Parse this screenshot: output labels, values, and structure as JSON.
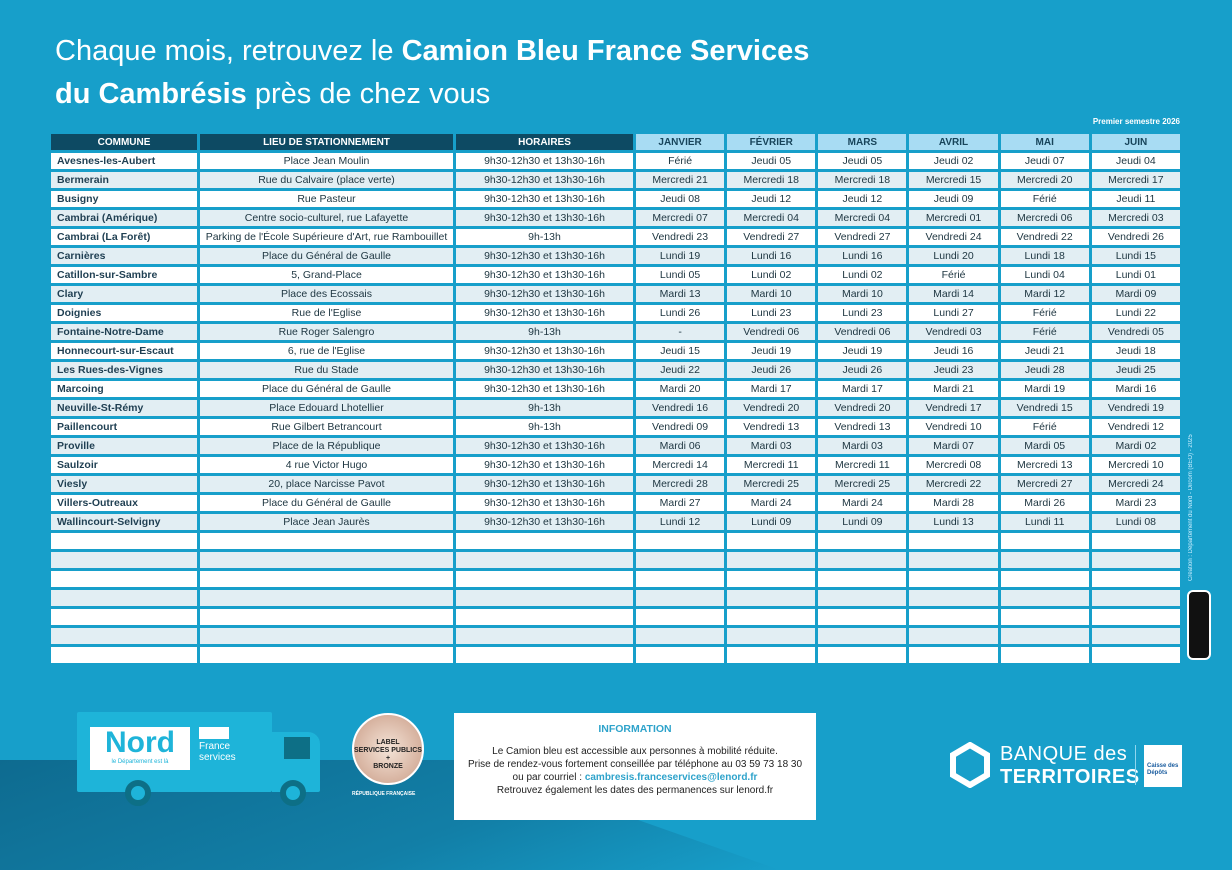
{
  "title": {
    "line1_regular": "Chaque mois, retrouvez le ",
    "line1_bold": "Camion Bleu France Services",
    "line2_bold": "du Cambrésis",
    "line2_regular": " près de chez vous"
  },
  "semester": "Premier semestre 2026",
  "table": {
    "headers": [
      "COMMUNE",
      "LIEU DE STATIONNEMENT",
      "HORAIRES",
      "JANVIER",
      "FÉVRIER",
      "MARS",
      "AVRIL",
      "MAI",
      "JUIN"
    ],
    "rows": [
      [
        "Avesnes-les-Aubert",
        "Place Jean Moulin",
        "9h30-12h30 et 13h30-16h",
        "Férié",
        "Jeudi 05",
        "Jeudi 05",
        "Jeudi 02",
        "Jeudi 07",
        "Jeudi 04"
      ],
      [
        "Bermerain",
        "Rue du Calvaire (place verte)",
        "9h30-12h30 et 13h30-16h",
        "Mercredi 21",
        "Mercredi 18",
        "Mercredi 18",
        "Mercredi 15",
        "Mercredi 20",
        "Mercredi 17"
      ],
      [
        "Busigny",
        "Rue Pasteur",
        "9h30-12h30 et 13h30-16h",
        "Jeudi 08",
        "Jeudi 12",
        "Jeudi 12",
        "Jeudi 09",
        "Férié",
        "Jeudi 11"
      ],
      [
        "Cambrai (Amérique)",
        "Centre socio-culturel, rue Lafayette",
        "9h30-12h30 et 13h30-16h",
        "Mercredi 07",
        "Mercredi 04",
        "Mercredi 04",
        "Mercredi 01",
        "Mercredi 06",
        "Mercredi 03"
      ],
      [
        "Cambrai (La Forêt)",
        "Parking de l'École Supérieure d'Art, rue Rambouillet",
        "9h-13h",
        "Vendredi 23",
        "Vendredi 27",
        "Vendredi 27",
        "Vendredi 24",
        "Vendredi 22",
        "Vendredi 26"
      ],
      [
        "Carnières",
        "Place du Général de Gaulle",
        "9h30-12h30 et 13h30-16h",
        "Lundi 19",
        "Lundi 16",
        "Lundi 16",
        "Lundi 20",
        "Lundi 18",
        "Lundi 15"
      ],
      [
        "Catillon-sur-Sambre",
        "5, Grand-Place",
        "9h30-12h30 et 13h30-16h",
        "Lundi 05",
        "Lundi 02",
        "Lundi 02",
        "Férié",
        "Lundi 04",
        "Lundi 01"
      ],
      [
        "Clary",
        "Place des Ecossais",
        "9h30-12h30 et 13h30-16h",
        "Mardi 13",
        "Mardi 10",
        "Mardi 10",
        "Mardi 14",
        "Mardi 12",
        "Mardi 09"
      ],
      [
        "Doignies",
        "Rue de l'Eglise",
        "9h30-12h30 et 13h30-16h",
        "Lundi 26",
        "Lundi 23",
        "Lundi 23",
        "Lundi 27",
        "Férié",
        "Lundi 22"
      ],
      [
        "Fontaine-Notre-Dame",
        "Rue Roger Salengro",
        "9h-13h",
        "-",
        "Vendredi 06",
        "Vendredi 06",
        "Vendredi 03",
        "Férié",
        "Vendredi 05"
      ],
      [
        "Honnecourt-sur-Escaut",
        "6, rue de l'Eglise",
        "9h30-12h30 et 13h30-16h",
        "Jeudi 15",
        "Jeudi 19",
        "Jeudi 19",
        "Jeudi 16",
        "Jeudi 21",
        "Jeudi 18"
      ],
      [
        "Les Rues-des-Vignes",
        "Rue du Stade",
        "9h30-12h30 et 13h30-16h",
        "Jeudi 22",
        "Jeudi 26",
        "Jeudi 26",
        "Jeudi 23",
        "Jeudi 28",
        "Jeudi 25"
      ],
      [
        "Marcoing",
        "Place du Général de Gaulle",
        "9h30-12h30 et 13h30-16h",
        "Mardi 20",
        "Mardi 17",
        "Mardi 17",
        "Mardi 21",
        "Mardi 19",
        "Mardi 16"
      ],
      [
        "Neuville-St-Rémy",
        "Place Edouard Lhotellier",
        "9h-13h",
        "Vendredi 16",
        "Vendredi 20",
        "Vendredi 20",
        "Vendredi 17",
        "Vendredi 15",
        "Vendredi 19"
      ],
      [
        "Paillencourt",
        "Rue Gilbert Betrancourt",
        "9h-13h",
        "Vendredi 09",
        "Vendredi 13",
        "Vendredi 13",
        "Vendredi 10",
        "Férié",
        "Vendredi 12"
      ],
      [
        "Proville",
        "Place de la République",
        "9h30-12h30 et 13h30-16h",
        "Mardi 06",
        "Mardi 03",
        "Mardi 03",
        "Mardi 07",
        "Mardi 05",
        "Mardi 02"
      ],
      [
        "Saulzoir",
        "4 rue Victor Hugo",
        "9h30-12h30 et 13h30-16h",
        "Mercredi 14",
        "Mercredi 11",
        "Mercredi 11",
        "Mercredi 08",
        "Mercredi 13",
        "Mercredi 10"
      ],
      [
        "Viesly",
        "20, place Narcisse Pavot",
        "9h30-12h30 et 13h30-16h",
        "Mercredi 28",
        "Mercredi 25",
        "Mercredi 25",
        "Mercredi 22",
        "Mercredi 27",
        "Mercredi 24"
      ],
      [
        "Villers-Outreaux",
        "Place du Général de Gaulle",
        "9h30-12h30 et 13h30-16h",
        "Mardi 27",
        "Mardi 24",
        "Mardi 24",
        "Mardi 28",
        "Mardi 26",
        "Mardi 23"
      ],
      [
        "Wallincourt-Selvigny",
        "Place Jean Jaurès",
        "9h30-12h30 et 13h30-16h",
        "Lundi 12",
        "Lundi 09",
        "Lundi 09",
        "Lundi 13",
        "Lundi 11",
        "Lundi 08"
      ]
    ],
    "empty_rows": 7
  },
  "credit": "Création : Département du Nord - Dircom (BEO) - 2025",
  "truck": {
    "nord": "Nord",
    "nord_tagline": "le Département est là",
    "france_services": "France services"
  },
  "badge": {
    "top": "DÉMARCHE CERTIFIÉE",
    "label": "LABEL",
    "name": "SERVICES PUBLICS +",
    "level": "BRONZE",
    "republique": "RÉPUBLIQUE FRANÇAISE"
  },
  "info": {
    "heading": "INFORMATION",
    "line1": "Le Camion bleu est accessible aux personnes à mobilité réduite.",
    "line2": "Prise de rendez-vous fortement conseillée par téléphone au 03 59 73 18 30",
    "line3_prefix": "ou par courriel : ",
    "email": "cambresis.franceservices@lenord.fr",
    "line4": "Retrouvez également les dates des permanences sur lenord.fr"
  },
  "banque": {
    "line1": "BANQUE des",
    "line2": "TERRITOIRES",
    "cdc": "Caisse des Dépôts"
  }
}
